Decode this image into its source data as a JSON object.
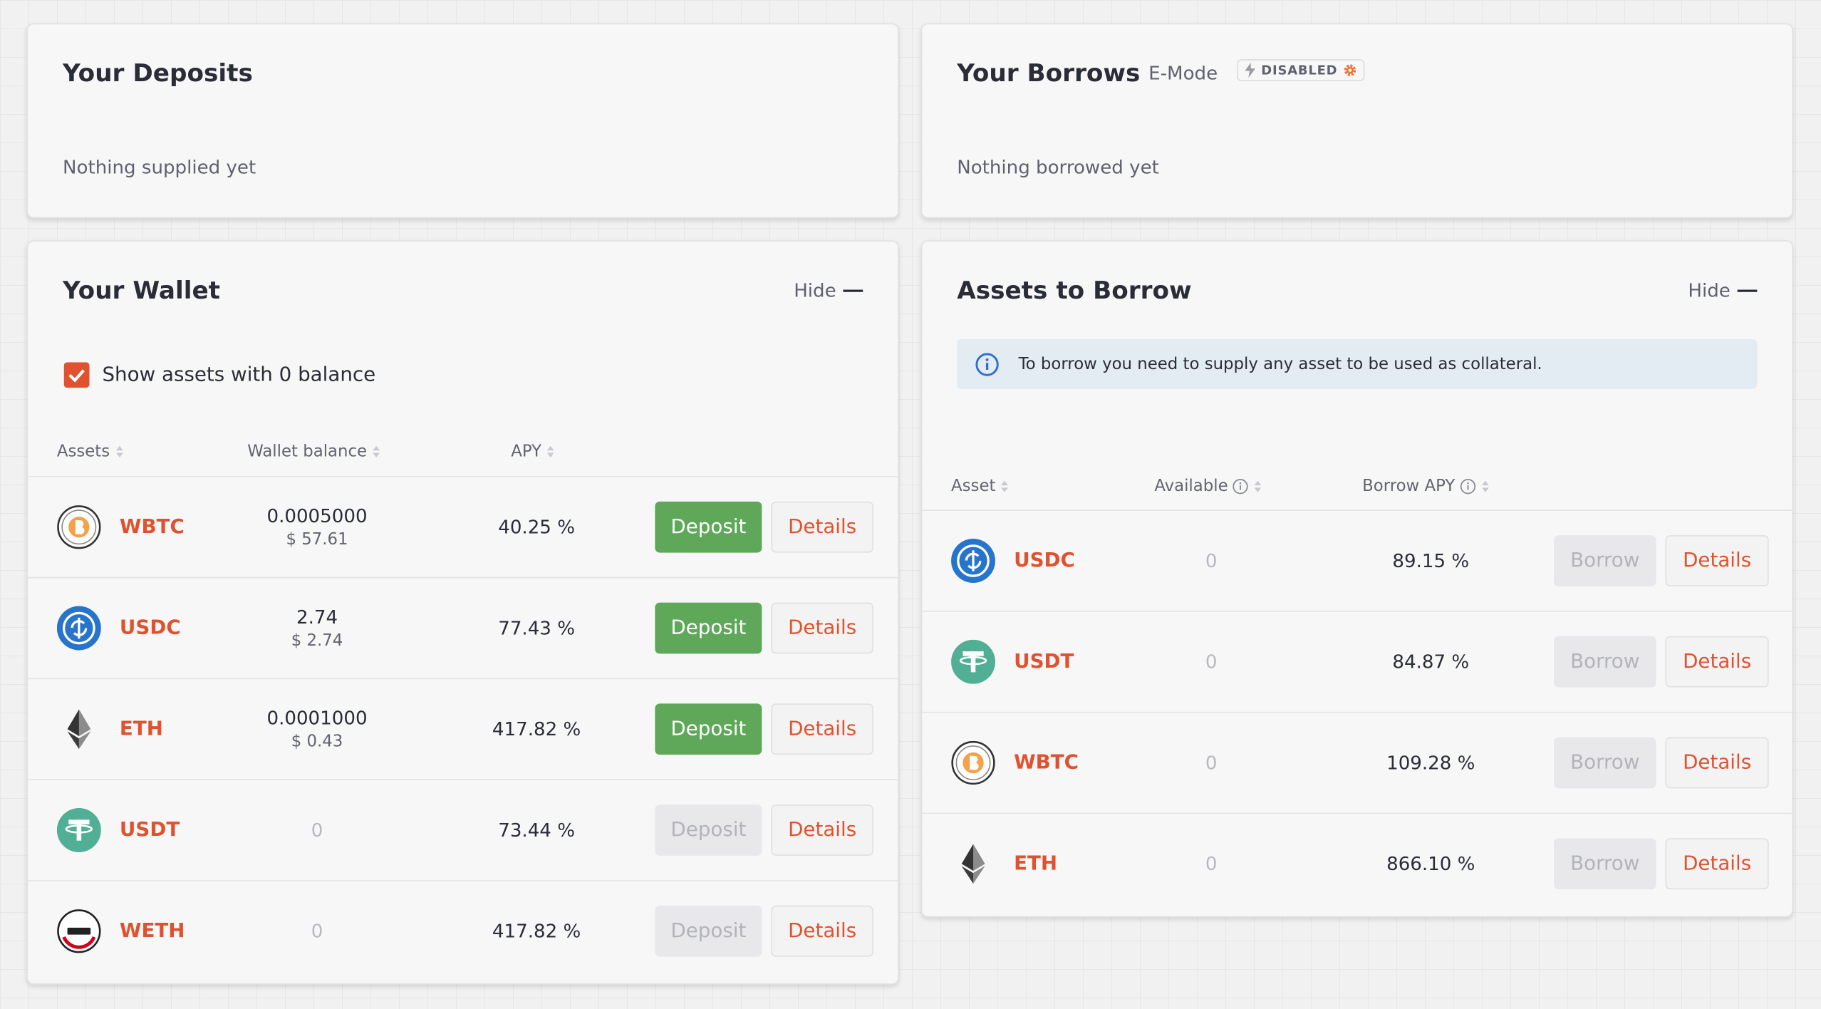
{
  "deposits": {
    "title": "Your Deposits",
    "empty": "Nothing supplied yet"
  },
  "borrows": {
    "title": "Your Borrows",
    "emode_label": "E-Mode",
    "emode_status": "DISABLED",
    "empty": "Nothing borrowed yet"
  },
  "wallet": {
    "title": "Your Wallet",
    "hide": "Hide",
    "checkbox_label": "Show assets with 0 balance",
    "checked": true,
    "columns": [
      "Assets",
      "Wallet balance",
      "APY"
    ],
    "rows": [
      {
        "asset": "WBTC",
        "balance": "0.0005000",
        "balance_usd": "$ 57.61",
        "apy": "40.25 %",
        "action": "Deposit",
        "enabled": true,
        "details": "Details"
      },
      {
        "asset": "USDC",
        "balance": "2.74",
        "balance_usd": "$ 2.74",
        "apy": "77.43 %",
        "action": "Deposit",
        "enabled": true,
        "details": "Details"
      },
      {
        "asset": "ETH",
        "balance": "0.0001000",
        "balance_usd": "$ 0.43",
        "apy": "417.82 %",
        "action": "Deposit",
        "enabled": true,
        "details": "Details"
      },
      {
        "asset": "USDT",
        "balance": "0",
        "balance_usd": null,
        "apy": "73.44 %",
        "action": "Deposit",
        "enabled": false,
        "details": "Details"
      },
      {
        "asset": "WETH",
        "balance": "0",
        "balance_usd": null,
        "apy": "417.82 %",
        "action": "Deposit",
        "enabled": false,
        "details": "Details"
      }
    ]
  },
  "borrow_assets": {
    "title": "Assets to Borrow",
    "hide": "Hide",
    "notice": "To borrow you need to supply any asset to be used as collateral.",
    "columns": [
      "Asset",
      "Available",
      "Borrow APY"
    ],
    "rows": [
      {
        "asset": "USDC",
        "available": "0",
        "apy": "89.15 %",
        "action": "Borrow",
        "enabled": false,
        "details": "Details"
      },
      {
        "asset": "USDT",
        "available": "0",
        "apy": "84.87 %",
        "action": "Borrow",
        "enabled": false,
        "details": "Details"
      },
      {
        "asset": "WBTC",
        "available": "0",
        "apy": "109.28 %",
        "action": "Borrow",
        "enabled": false,
        "details": "Details"
      },
      {
        "asset": "ETH",
        "available": "0",
        "apy": "866.10 %",
        "action": "Borrow",
        "enabled": false,
        "details": "Details"
      }
    ]
  }
}
